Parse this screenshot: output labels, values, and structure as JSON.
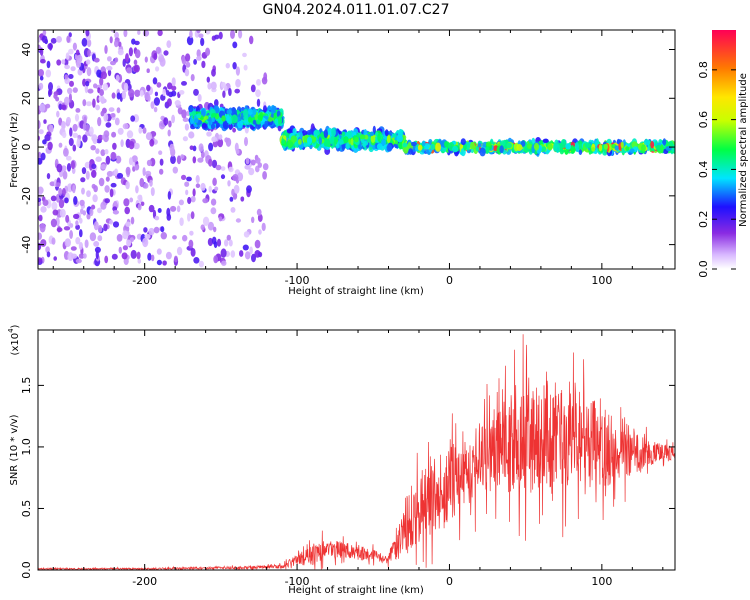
{
  "title": "GN04.2024.011.01.07.C27",
  "chart_data": [
    {
      "type": "heatmap",
      "xlabel": "Height of straight line (km)",
      "ylabel": "Frequency (Hz)",
      "xlim": [
        -270,
        148
      ],
      "ylim": [
        -50,
        48
      ],
      "x_ticks": [
        -200,
        -100,
        0,
        100
      ],
      "y_ticks": [
        -40,
        -20,
        0,
        20,
        40
      ],
      "colorbar": {
        "label": "Normalized spectral amplitude",
        "range": [
          0,
          0.96
        ],
        "ticks": [
          0.0,
          0.2,
          0.4,
          0.6,
          0.8
        ]
      },
      "bands": [
        {
          "x": [
            -270,
            -120
          ],
          "frequency_spread": 48,
          "amplitude": 0.25
        },
        {
          "x": [
            -170,
            -110
          ],
          "frequency_center": 12,
          "frequency_spread": 7,
          "amplitude": 0.35
        },
        {
          "x": [
            -110,
            -30
          ],
          "frequency_center": 3,
          "frequency_spread": 7,
          "amplitude": 0.4
        },
        {
          "x": [
            -30,
            148
          ],
          "frequency_center": 0,
          "frequency_spread": 4,
          "amplitude": 0.45
        }
      ]
    },
    {
      "type": "line",
      "xlabel": "Height of straight line (km)",
      "ylabel": "SNR (10 * v/v)",
      "y_scale_label": "(x10",
      "y_scale_exp": "4",
      "y_scale_close": ")",
      "xlim": [
        -270,
        148
      ],
      "ylim": [
        0,
        1.95
      ],
      "x_ticks": [
        -200,
        -100,
        0,
        100
      ],
      "y_ticks": [
        0.0,
        0.5,
        1.0,
        1.5
      ],
      "color": "#ee3333",
      "envelope": {
        "x": [
          -270,
          -200,
          -130,
          -110,
          -100,
          -90,
          -80,
          -70,
          -60,
          -50,
          -40,
          -30,
          -20,
          -10,
          0,
          10,
          20,
          30,
          40,
          50,
          60,
          70,
          80,
          90,
          100,
          110,
          120,
          130,
          140,
          148
        ],
        "mean": [
          0.01,
          0.01,
          0.02,
          0.03,
          0.08,
          0.15,
          0.18,
          0.16,
          0.14,
          0.12,
          0.08,
          0.35,
          0.5,
          0.6,
          0.7,
          0.8,
          0.9,
          1.0,
          1.05,
          1.1,
          1.1,
          1.05,
          1.05,
          1.05,
          1.0,
          0.98,
          0.97,
          0.96,
          0.95,
          0.95
        ],
        "spread": [
          0.01,
          0.01,
          0.02,
          0.03,
          0.07,
          0.2,
          0.12,
          0.12,
          0.1,
          0.08,
          0.06,
          0.4,
          0.5,
          0.5,
          0.5,
          0.55,
          0.5,
          0.6,
          0.7,
          0.8,
          0.7,
          0.7,
          0.75,
          0.65,
          0.55,
          0.45,
          0.35,
          0.2,
          0.12,
          0.1
        ]
      }
    }
  ]
}
